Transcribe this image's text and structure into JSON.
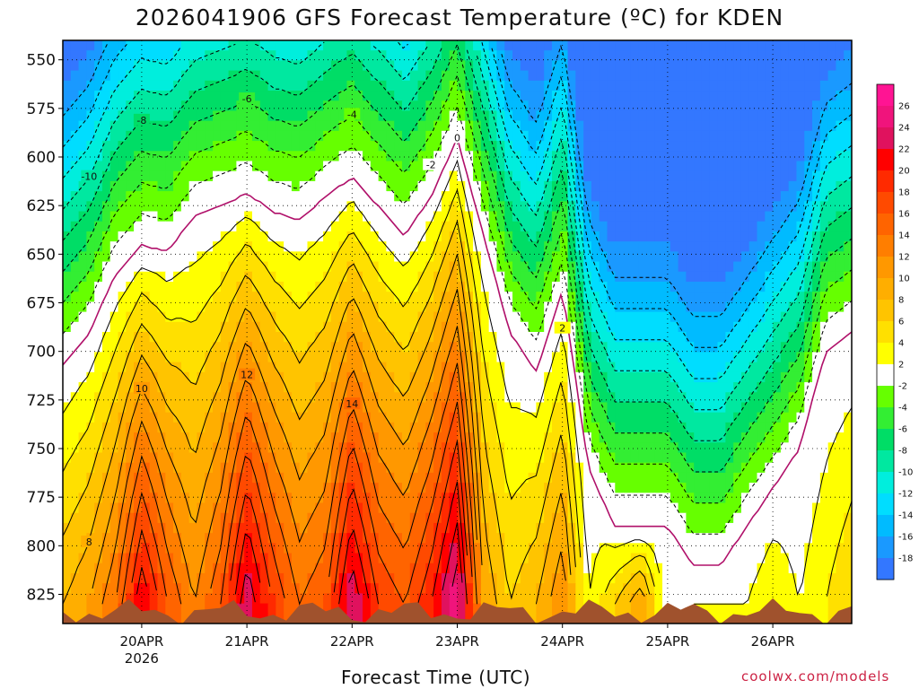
{
  "title": "2026041906 GFS Forecast Temperature (ºC) for KDEN",
  "xlabel": "Forecast Time (UTC)",
  "credit": "coolwx.com/models",
  "chart_data": {
    "type": "heatmap",
    "title": "2026041906 GFS Forecast Temperature (ºC) for KDEN",
    "xlabel": "Forecast Time (UTC)",
    "ylabel": "",
    "x_ticks": [
      "20APR",
      "21APR",
      "22APR",
      "23APR",
      "24APR",
      "25APR",
      "26APR"
    ],
    "x_sub": "2026",
    "y_ticks": [
      550,
      575,
      600,
      625,
      650,
      675,
      700,
      725,
      750,
      775,
      800,
      825
    ],
    "colorbar_levels": [
      26,
      24,
      22,
      20,
      18,
      16,
      14,
      12,
      10,
      8,
      6,
      4,
      2,
      -2,
      -4,
      -6,
      -8,
      -10,
      -12,
      -14,
      -16,
      -18
    ],
    "colorbar_colors": [
      "#ff1493",
      "#f0147c",
      "#e0125e",
      "#ff0000",
      "#ff2a00",
      "#ff4a00",
      "#ff6400",
      "#ff7e00",
      "#ff9800",
      "#ffae00",
      "#ffc400",
      "#ffe000",
      "#ffff00",
      "#ffffff",
      "#66ff00",
      "#33ee33",
      "#00dd66",
      "#00e8a0",
      "#00eedd",
      "#00ddff",
      "#00bbff",
      "#1a99ff",
      "#3377ff"
    ],
    "series": [
      {
        "x": [
          "2026-04-19T06",
          "2026-04-19T12",
          "2026-04-19T18",
          "2026-04-20T00",
          "2026-04-20T06",
          "2026-04-20T12",
          "2026-04-20T18",
          "2026-04-21T00",
          "2026-04-21T06",
          "2026-04-21T12",
          "2026-04-21T18",
          "2026-04-22T00",
          "2026-04-22T06",
          "2026-04-22T12",
          "2026-04-22T18",
          "2026-04-23T00",
          "2026-04-23T06",
          "2026-04-23T12",
          "2026-04-23T18",
          "2026-04-24T00",
          "2026-04-24T06",
          "2026-04-24T12",
          "2026-04-24T18",
          "2026-04-25T00",
          "2026-04-25T06",
          "2026-04-25T12",
          "2026-04-25T18",
          "2026-04-26T00",
          "2026-04-26T06",
          "2026-04-26T12",
          "2026-04-26T18"
        ],
        "freezing_level_mb": [
          707,
          690,
          660,
          645,
          648,
          630,
          625,
          618,
          628,
          632,
          620,
          610,
          625,
          640,
          620,
          590,
          640,
          690,
          710,
          668,
          760,
          790,
          790,
          790,
          810,
          810,
          790,
          770,
          750,
          700,
          690
        ],
        "surface_temp_c": [
          8,
          10,
          14,
          22,
          16,
          12,
          16,
          24,
          18,
          14,
          16,
          24,
          18,
          16,
          20,
          26,
          10,
          6,
          8,
          12,
          2,
          6,
          10,
          0,
          2,
          2,
          2,
          4,
          2,
          4,
          6
        ]
      }
    ],
    "xlim": [
      "2026-04-19T06",
      "2026-04-26T18"
    ],
    "ylim": [
      840,
      540
    ],
    "grid": true,
    "legend": "right colorbar"
  }
}
